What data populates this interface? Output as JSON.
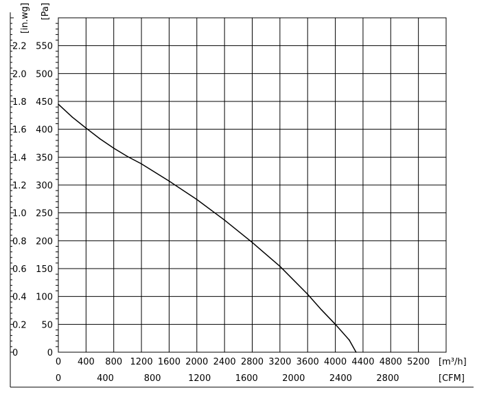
{
  "chart_data": {
    "type": "line",
    "title": "",
    "y_left_label": "[in.wg]",
    "y_right_label": "[Pa]",
    "x_primary_label": "[m³/h]",
    "x_secondary_label": "[CFM]",
    "y_inwg_ticks": [
      "0",
      "0.2",
      "0.4",
      "0.6",
      "0.8",
      "1.0",
      "1.2",
      "1.4",
      "1.6",
      "1.8",
      "2.0",
      "2.2"
    ],
    "y_pa_ticks": [
      "0",
      "50",
      "100",
      "150",
      "200",
      "250",
      "300",
      "350",
      "400",
      "450",
      "500",
      "550"
    ],
    "x_m3h_ticks": [
      "0",
      "400",
      "800",
      "1200",
      "1600",
      "2000",
      "2400",
      "2800",
      "3200",
      "3600",
      "4000",
      "4400",
      "4800",
      "5200"
    ],
    "x_cfm_ticks": [
      "0",
      "400",
      "800",
      "1200",
      "1600",
      "2000",
      "2400",
      "2800"
    ],
    "xlim_m3h": [
      0,
      5600
    ],
    "ylim_pa": [
      0,
      600
    ],
    "grid": true,
    "series": [
      {
        "x": [
          0,
          200,
          400,
          600,
          800,
          1000,
          1200,
          1600,
          2000,
          2400,
          2800,
          3200,
          3600,
          3800,
          4000,
          4200,
          4300
        ],
        "y": [
          445,
          422,
          402,
          383,
          366,
          351,
          338,
          307,
          274,
          237,
          197,
          154,
          104,
          76,
          50,
          22,
          0
        ],
        "color": "#000000"
      }
    ]
  }
}
